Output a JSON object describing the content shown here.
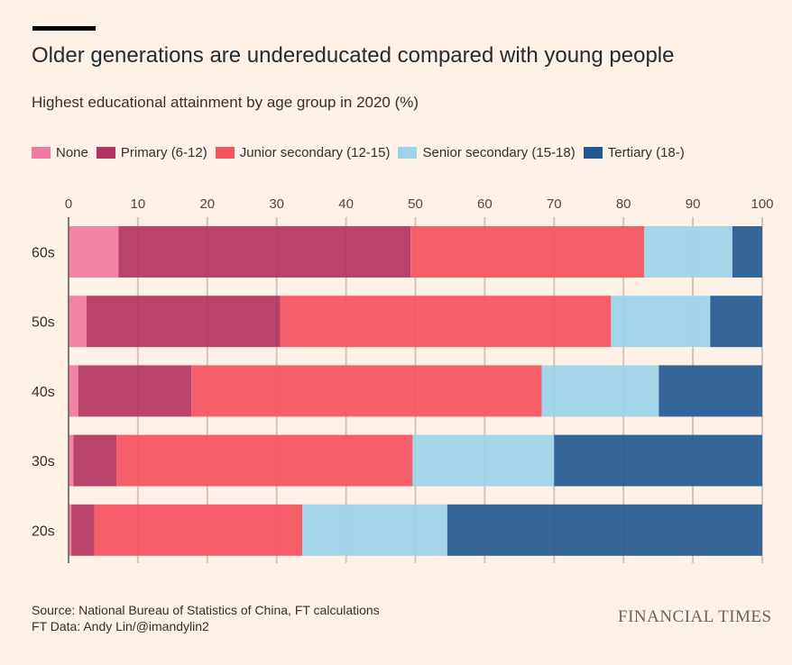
{
  "header": {
    "title": "Older generations are undereducated compared with young people",
    "subtitle": "Highest educational attainment by age group in 2020 (%)"
  },
  "footer": {
    "source_line": "Source: National Bureau of Statistics of China, FT calculations",
    "credit_line": "FT Data: Andy Lin/@imandylin2",
    "brand": "FINANCIAL TIMES"
  },
  "chart_data": {
    "type": "bar",
    "orientation": "horizontal",
    "stacked": true,
    "title": "Older generations are undereducated compared with young people",
    "subtitle": "Highest educational attainment by age group in 2020 (%)",
    "xlabel": "",
    "ylabel": "",
    "xlim": [
      0,
      100
    ],
    "x_ticks": [
      0,
      10,
      20,
      30,
      40,
      50,
      60,
      70,
      80,
      90,
      100
    ],
    "x_axis_position": "top",
    "grid": true,
    "legend_position": "top",
    "categories": [
      "60s",
      "50s",
      "40s",
      "30s",
      "20s"
    ],
    "series": [
      {
        "name": "None",
        "color": "#f2799f",
        "values": [
          7.2,
          2.6,
          1.4,
          0.7,
          0.4
        ]
      },
      {
        "name": "Primary (6-12)",
        "color": "#b33460",
        "values": [
          42.1,
          27.9,
          16.3,
          6.2,
          3.3
        ]
      },
      {
        "name": "Junior secondary (12-15)",
        "color": "#f5535f",
        "values": [
          33.7,
          47.7,
          50.5,
          42.7,
          30.0
        ]
      },
      {
        "name": "Senior secondary (15-18)",
        "color": "#9dd3e8",
        "values": [
          12.7,
          14.3,
          16.9,
          20.4,
          20.9
        ]
      },
      {
        "name": "Tertiary (18-)",
        "color": "#235993",
        "values": [
          4.3,
          7.5,
          14.9,
          30.0,
          45.4
        ]
      }
    ]
  }
}
